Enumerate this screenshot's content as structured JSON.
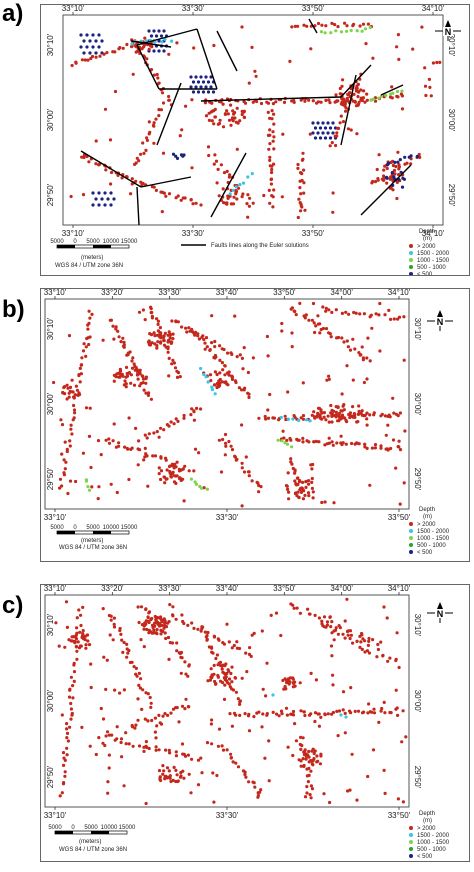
{
  "colors": {
    "depth_gt_2000": "#c4281c",
    "depth_1500_2000": "#39c6e6",
    "depth_1000_1500": "#7fd44a",
    "depth_500_1000": "#2ea12e",
    "depth_lt_500": "#1a237e",
    "fault": "#000000",
    "frame": "#666666"
  },
  "north_label": "N",
  "panels": [
    {
      "id": "a",
      "letter": "a)",
      "top_ticks": [
        "33°10'",
        "33°30'",
        "33°50'",
        "34°10'"
      ],
      "bottom_ticks": [
        "33°10'",
        "33°30'",
        "33°50'",
        "34°10'"
      ],
      "right_ticks": [
        "30°10'",
        "30°00'",
        "29°50'"
      ],
      "left_ticks": [
        "30°10'",
        "30°00'",
        "29°50'"
      ],
      "scale_numbers": [
        "5000",
        "0",
        "5000",
        "10000",
        "15000"
      ],
      "scale_unit": "(meters)",
      "projection": "WGS 84 / UTM zone 36N",
      "fault_caption": "Faults lines along the Euler solutions",
      "legend_title": "Depth",
      "legend_unit": "(m)",
      "legend": [
        {
          "color_key": "depth_gt_2000",
          "label": "> 2000"
        },
        {
          "color_key": "depth_1500_2000",
          "label": "1500 - 2000"
        },
        {
          "color_key": "depth_1000_1500",
          "label": "1000 - 1500"
        },
        {
          "color_key": "depth_500_1000",
          "label": "500 - 1000"
        },
        {
          "color_key": "depth_lt_500",
          "label": "< 500"
        }
      ]
    },
    {
      "id": "b",
      "letter": "b)",
      "top_ticks": [
        "33°10'",
        "33°20'",
        "33°30'",
        "33°40'",
        "33°50'",
        "34°00'",
        "34°10'"
      ],
      "bottom_ticks": [
        "33°10'",
        "33°30'",
        "33°50'"
      ],
      "right_ticks": [
        "30°10'",
        "30°00'",
        "29°50'"
      ],
      "left_ticks": [
        "30°10'",
        "30°00'",
        "29°50'"
      ],
      "scale_numbers": [
        "5000",
        "0",
        "5000",
        "10000",
        "15000"
      ],
      "scale_unit": "(meters)",
      "projection": "WGS 84 / UTM zone 36N",
      "fault_caption": "",
      "legend_title": "Depth",
      "legend_unit": "(m)",
      "legend": [
        {
          "color_key": "depth_gt_2000",
          "label": "> 2000"
        },
        {
          "color_key": "depth_1500_2000",
          "label": "1500 - 2000"
        },
        {
          "color_key": "depth_1000_1500",
          "label": "1000 - 1500"
        },
        {
          "color_key": "depth_500_1000",
          "label": "500 - 1000"
        },
        {
          "color_key": "depth_lt_500",
          "label": "< 500"
        }
      ]
    },
    {
      "id": "c",
      "letter": "c)",
      "top_ticks": [
        "33°10'",
        "33°20'",
        "33°30'",
        "33°40'",
        "33°50'",
        "34°00'",
        "34°10'"
      ],
      "bottom_ticks": [
        "33°10'",
        "33°30'",
        "33°50'"
      ],
      "right_ticks": [
        "30°10'",
        "30°00'",
        "29°50'"
      ],
      "left_ticks": [
        "30°10'",
        "30°00'",
        "29°50'"
      ],
      "scale_numbers": [
        "5000",
        "0",
        "5000",
        "10000",
        "15000"
      ],
      "scale_unit": "(meters)",
      "projection": "WGS 84 / UTM zone 36N",
      "fault_caption": "",
      "legend_title": "Depth",
      "legend_unit": "(m)",
      "legend": [
        {
          "color_key": "depth_gt_2000",
          "label": "> 2000"
        },
        {
          "color_key": "depth_1500_2000",
          "label": "1500 - 2000"
        },
        {
          "color_key": "depth_1000_1500",
          "label": "1000 - 1500"
        },
        {
          "color_key": "depth_500_1000",
          "label": "500 - 1000"
        },
        {
          "color_key": "depth_lt_500",
          "label": "< 500"
        }
      ]
    }
  ]
}
